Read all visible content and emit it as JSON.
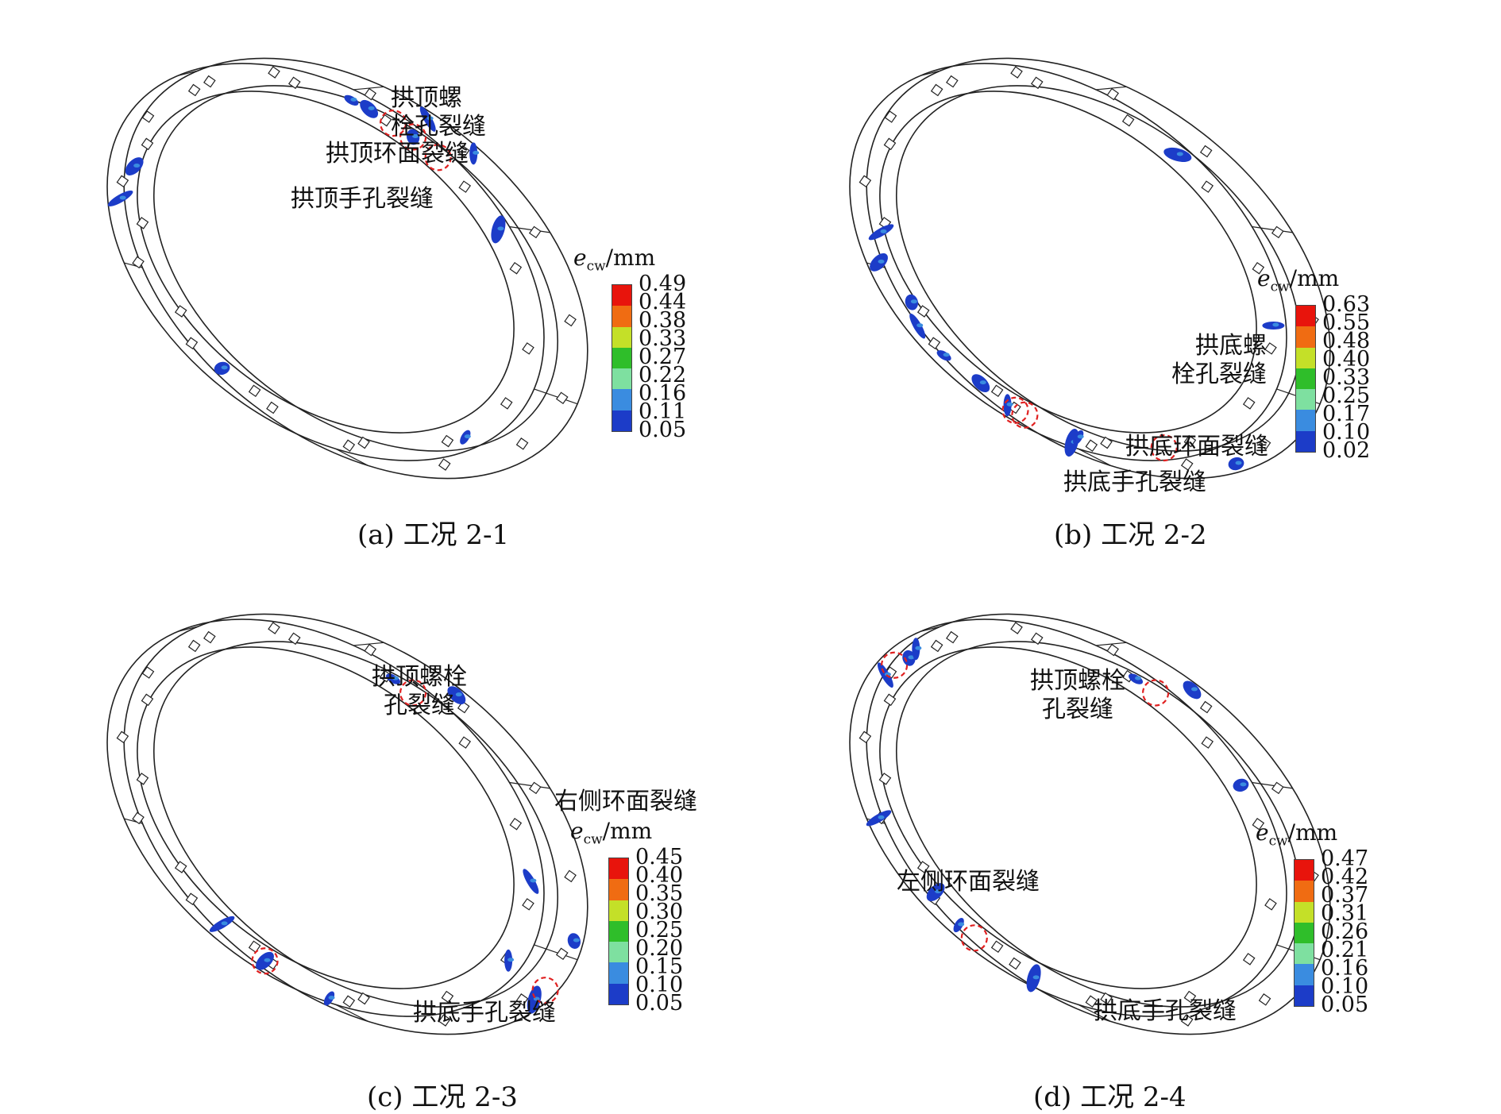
{
  "legend_colors": [
    "#e8140c",
    "#f06c12",
    "#c4e028",
    "#2fbe2a",
    "#7ee0a0",
    "#3a8ce0",
    "#1c3cc8"
  ],
  "panels": [
    {
      "id": "a",
      "caption": "(a) 工况 2-1",
      "legend": {
        "title_var": "e",
        "title_sub": "cw",
        "title_unit": "/mm",
        "values": [
          "0.49",
          "0.44",
          "0.38",
          "0.33",
          "0.27",
          "0.22",
          "0.16",
          "0.11",
          "0.05"
        ]
      },
      "callouts": [
        {
          "text": "拱顶螺\n栓孔裂缝"
        },
        {
          "text": "拱顶环面裂缝"
        },
        {
          "text": "拱顶手孔裂缝"
        }
      ]
    },
    {
      "id": "b",
      "caption": "(b) 工况 2-2",
      "legend": {
        "title_var": "e",
        "title_sub": "cw",
        "title_unit": "/mm",
        "values": [
          "0.63",
          "0.55",
          "0.48",
          "0.40",
          "0.33",
          "0.25",
          "0.17",
          "0.10",
          "0.02"
        ]
      },
      "callouts": [
        {
          "text": "拱底螺\n栓孔裂缝"
        },
        {
          "text": "拱底环面裂缝"
        },
        {
          "text": "拱底手孔裂缝"
        }
      ]
    },
    {
      "id": "c",
      "caption": "(c) 工况 2-3",
      "legend": {
        "title_var": "e",
        "title_sub": "cw",
        "title_unit": "/mm",
        "values": [
          "0.45",
          "0.40",
          "0.35",
          "0.30",
          "0.25",
          "0.20",
          "0.15",
          "0.10",
          "0.05"
        ]
      },
      "callouts": [
        {
          "text": "拱顶螺栓\n孔裂缝"
        },
        {
          "text": "右侧环面裂缝"
        },
        {
          "text": "拱底手孔裂缝"
        }
      ]
    },
    {
      "id": "d",
      "caption": "(d) 工况 2-4",
      "legend": {
        "title_var": "e",
        "title_sub": "cw",
        "title_unit": "/mm",
        "values": [
          "0.47",
          "0.42",
          "0.37",
          "0.31",
          "0.26",
          "0.21",
          "0.16",
          "0.10",
          "0.05"
        ]
      },
      "callouts": [
        {
          "text": "拱顶螺栓\n孔裂缝"
        },
        {
          "text": "左侧环面裂缝"
        },
        {
          "text": "拱底手孔裂缝"
        }
      ]
    }
  ]
}
